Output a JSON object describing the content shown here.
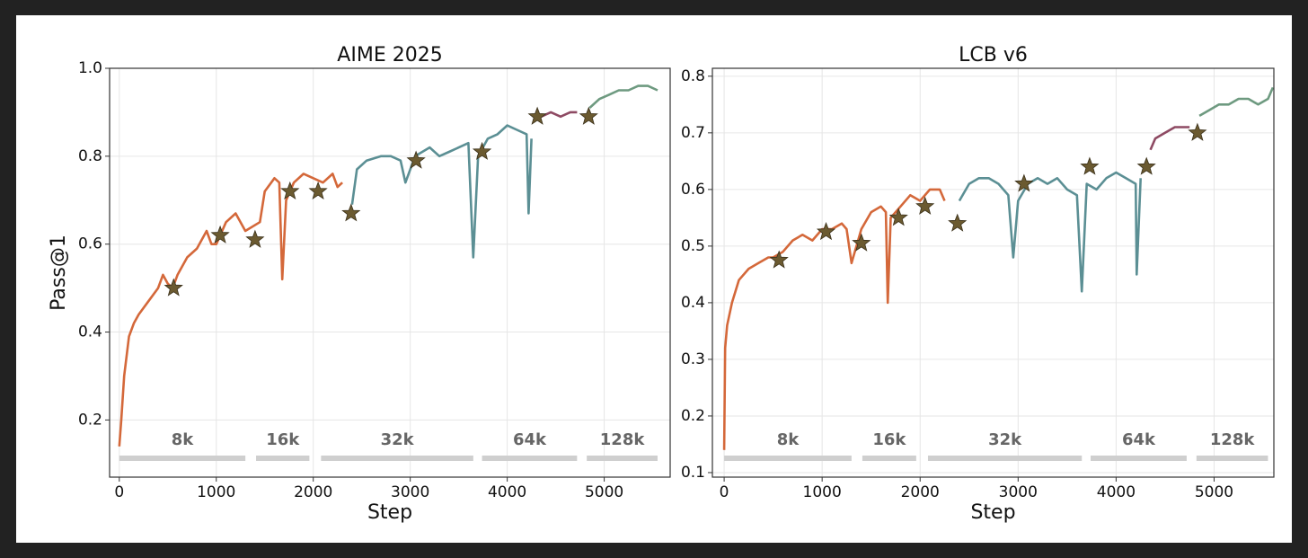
{
  "chart_data": [
    {
      "type": "line",
      "title": "AIME 2025",
      "xlabel": "Step",
      "ylabel": "Pass@1",
      "xlim": [
        -100,
        5680
      ],
      "ylim": [
        0.07,
        1.0
      ],
      "xticks": [
        0,
        1000,
        2000,
        3000,
        4000,
        5000
      ],
      "yticks": [
        0.2,
        0.4,
        0.6,
        0.8,
        {
          "value": 1.0,
          "label": "1.0"
        }
      ],
      "grid": true,
      "series": [
        {
          "color": "#d4683a",
          "x": [
            0,
            20,
            50,
            100,
            150,
            200,
            300,
            400,
            450,
            500,
            550,
            600,
            700,
            800,
            900,
            950,
            1000,
            1100,
            1200,
            1300,
            1450,
            1500,
            1600,
            1650,
            1680,
            1720,
            1800,
            1900,
            2000,
            2100,
            2200,
            2250,
            2300
          ],
          "values": [
            0.14,
            0.2,
            0.3,
            0.39,
            0.42,
            0.44,
            0.47,
            0.5,
            0.53,
            0.51,
            0.5,
            0.53,
            0.57,
            0.59,
            0.63,
            0.6,
            0.6,
            0.65,
            0.67,
            0.63,
            0.65,
            0.72,
            0.75,
            0.74,
            0.52,
            0.7,
            0.74,
            0.76,
            0.75,
            0.74,
            0.76,
            0.73,
            0.74
          ]
        },
        {
          "color": "#5b8f94",
          "x": [
            2400,
            2450,
            2550,
            2700,
            2800,
            2900,
            2950,
            3050,
            3200,
            3300,
            3400,
            3500,
            3600,
            3650,
            3700,
            3800,
            3900,
            4000,
            4100,
            4200,
            4220,
            4250
          ],
          "values": [
            0.69,
            0.77,
            0.79,
            0.8,
            0.8,
            0.79,
            0.74,
            0.8,
            0.82,
            0.8,
            0.81,
            0.82,
            0.83,
            0.57,
            0.8,
            0.84,
            0.85,
            0.87,
            0.86,
            0.85,
            0.67,
            0.84
          ]
        },
        {
          "color": "#8e4a63",
          "x": [
            4350,
            4450,
            4550,
            4650,
            4720
          ],
          "values": [
            0.89,
            0.9,
            0.89,
            0.9,
            0.9
          ]
        },
        {
          "color": "#6e9a80",
          "x": [
            4850,
            4950,
            5050,
            5150,
            5250,
            5350,
            5450,
            5550
          ],
          "values": [
            0.91,
            0.93,
            0.94,
            0.95,
            0.95,
            0.96,
            0.96,
            0.95
          ]
        }
      ],
      "stars": {
        "color": "#6b5a30",
        "x": [
          560,
          1040,
          1400,
          1760,
          2050,
          2390,
          3060,
          3740,
          4310,
          4840
        ],
        "values": [
          0.5,
          0.62,
          0.61,
          0.72,
          0.72,
          0.67,
          0.79,
          0.81,
          0.89,
          0.89
        ]
      },
      "phases": [
        {
          "label": "8k",
          "start": 0,
          "end": 1300
        },
        {
          "label": "16k",
          "start": 1410,
          "end": 1960
        },
        {
          "label": "32k",
          "start": 2080,
          "end": 3650
        },
        {
          "label": "64k",
          "start": 3740,
          "end": 4720
        },
        {
          "label": "128k",
          "start": 4820,
          "end": 5550
        }
      ]
    },
    {
      "type": "line",
      "title": "LCB v6",
      "xlabel": "Step",
      "xlim": [
        -120,
        5610
      ],
      "ylim": [
        0.092,
        0.814
      ],
      "xticks": [
        0,
        1000,
        2000,
        3000,
        4000,
        5000
      ],
      "yticks": [
        0.1,
        0.2,
        0.3,
        0.4,
        0.5,
        0.6,
        0.7,
        0.8
      ],
      "grid": true,
      "series": [
        {
          "color": "#d4683a",
          "x": [
            0,
            10,
            30,
            80,
            150,
            250,
            350,
            450,
            500,
            600,
            700,
            800,
            900,
            1000,
            1100,
            1200,
            1250,
            1300,
            1400,
            1500,
            1600,
            1650,
            1670,
            1700,
            1800,
            1900,
            2000,
            2100,
            2200,
            2250
          ],
          "values": [
            0.14,
            0.32,
            0.36,
            0.4,
            0.44,
            0.46,
            0.47,
            0.48,
            0.48,
            0.49,
            0.51,
            0.52,
            0.51,
            0.53,
            0.53,
            0.54,
            0.53,
            0.47,
            0.53,
            0.56,
            0.57,
            0.56,
            0.4,
            0.55,
            0.57,
            0.59,
            0.58,
            0.6,
            0.6,
            0.58
          ]
        },
        {
          "color": "#5b8f94",
          "x": [
            2400,
            2500,
            2600,
            2700,
            2800,
            2900,
            2950,
            3000,
            3100,
            3200,
            3300,
            3400,
            3500,
            3600,
            3650,
            3700,
            3800,
            3900,
            4000,
            4100,
            4200,
            4210,
            4250
          ],
          "values": [
            0.58,
            0.61,
            0.62,
            0.62,
            0.61,
            0.59,
            0.48,
            0.58,
            0.61,
            0.62,
            0.61,
            0.62,
            0.6,
            0.59,
            0.42,
            0.61,
            0.6,
            0.62,
            0.63,
            0.62,
            0.61,
            0.45,
            0.62
          ]
        },
        {
          "color": "#8e4a63",
          "x": [
            4350,
            4400,
            4500,
            4600,
            4700,
            4750
          ],
          "values": [
            0.67,
            0.69,
            0.7,
            0.71,
            0.71,
            0.71
          ]
        },
        {
          "color": "#6e9a80",
          "x": [
            4850,
            4950,
            5050,
            5150,
            5250,
            5350,
            5450,
            5550,
            5600
          ],
          "values": [
            0.73,
            0.74,
            0.75,
            0.75,
            0.76,
            0.76,
            0.75,
            0.76,
            0.78
          ]
        }
      ],
      "stars": {
        "color": "#6b5a30",
        "x": [
          560,
          1040,
          1400,
          1780,
          2050,
          2380,
          3060,
          3730,
          4310,
          4830
        ],
        "values": [
          0.475,
          0.525,
          0.505,
          0.55,
          0.57,
          0.54,
          0.61,
          0.64,
          0.64,
          0.7
        ]
      },
      "phases": [
        {
          "label": "8k",
          "start": 0,
          "end": 1300
        },
        {
          "label": "16k",
          "start": 1410,
          "end": 1960
        },
        {
          "label": "32k",
          "start": 2080,
          "end": 3650
        },
        {
          "label": "64k",
          "start": 3740,
          "end": 4720
        },
        {
          "label": "128k",
          "start": 4820,
          "end": 5550
        }
      ]
    }
  ]
}
